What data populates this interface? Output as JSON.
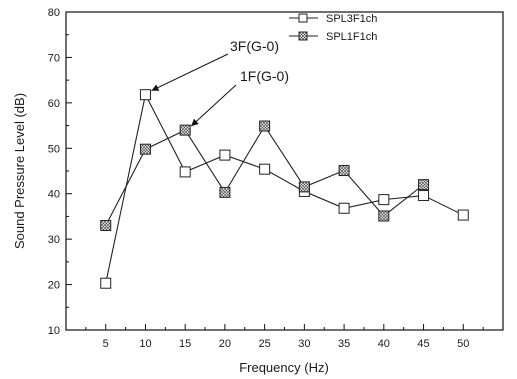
{
  "chart_data": {
    "type": "line",
    "xlabel": "Frequency (Hz)",
    "ylabel": "Sound Pressure Level (dB)",
    "xlim": [
      0,
      55
    ],
    "ylim": [
      10,
      80
    ],
    "x_ticks": [
      5,
      10,
      15,
      20,
      25,
      30,
      35,
      40,
      45,
      50
    ],
    "y_ticks": [
      10,
      20,
      30,
      40,
      50,
      60,
      70,
      80
    ],
    "grid": false,
    "legend_position": "top-right",
    "series": [
      {
        "name": "SPL3F1ch",
        "marker": "open-square",
        "x": [
          5,
          10,
          15,
          20,
          25,
          30,
          35,
          40,
          45,
          50
        ],
        "values": [
          20.3,
          61.8,
          44.8,
          48.5,
          45.4,
          40.5,
          36.8,
          38.7,
          39.6,
          35.3
        ]
      },
      {
        "name": "SPL1F1ch",
        "marker": "crossed-square",
        "x": [
          5,
          10,
          15,
          20,
          25,
          30,
          35,
          40,
          45
        ],
        "values": [
          33.0,
          49.8,
          54.0,
          40.3,
          54.9,
          41.5,
          45.1,
          35.1,
          42.0
        ]
      }
    ],
    "annotations": [
      {
        "text": "3F(G-0)",
        "target_x": 10,
        "target_y": 61.8
      },
      {
        "text": "1F(G-0)",
        "target_x": 15,
        "target_y": 54.0
      }
    ]
  }
}
